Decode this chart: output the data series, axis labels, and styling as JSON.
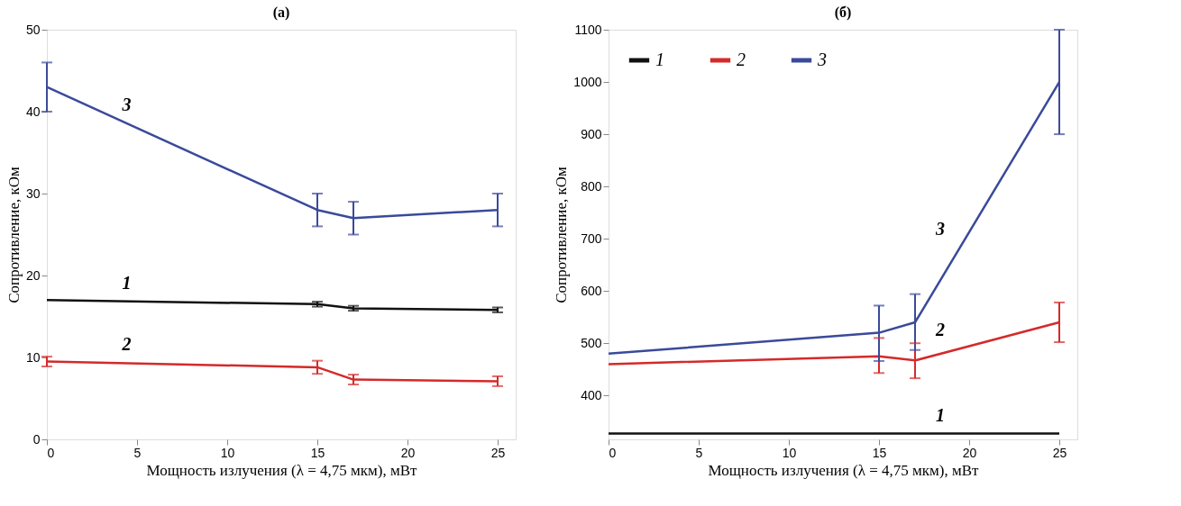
{
  "chart_data": [
    {
      "type": "line",
      "title": "(a)",
      "xlabel": "Мощность излучения (λ = 4,75 мкм), мВт",
      "ylabel": "Сопротивление, кОм",
      "x": [
        0,
        15,
        17,
        25
      ],
      "xlim": [
        0,
        26
      ],
      "xticks": [
        0,
        5,
        10,
        15,
        20,
        25
      ],
      "ylim": [
        0,
        50
      ],
      "yticks": [
        0,
        10,
        20,
        30,
        40,
        50
      ],
      "grid": false,
      "legend": false,
      "marker": "none",
      "line_style": "solid",
      "series": [
        {
          "name": "1",
          "color": "#111111",
          "values": [
            17,
            16.5,
            16,
            15.8
          ],
          "errors": [
            null,
            0.3,
            0.3,
            0.3
          ]
        },
        {
          "name": "2",
          "color": "#d42a2a",
          "values": [
            9.5,
            8.8,
            7.3,
            7.1
          ],
          "errors": [
            0.6,
            0.8,
            0.6,
            0.6
          ]
        },
        {
          "name": "3",
          "color": "#3a4a9a",
          "values": [
            43,
            28,
            27,
            28
          ],
          "errors": [
            3,
            2,
            2,
            2
          ]
        }
      ]
    },
    {
      "type": "line",
      "title": "(б)",
      "xlabel": "Мощность излучения (λ = 4,75 мкм), мВт",
      "ylabel": "Сопротивление, кОм",
      "x": [
        0,
        15,
        17,
        25
      ],
      "xlim": [
        0,
        26
      ],
      "xticks": [
        0,
        5,
        10,
        15,
        20,
        25
      ],
      "ylim": [
        316,
        1100
      ],
      "yticks": [
        400,
        500,
        600,
        700,
        800,
        900,
        1000,
        1100
      ],
      "grid": false,
      "legend": "top left",
      "marker": "none",
      "line_style": "solid",
      "series": [
        {
          "name": "1",
          "color": "#111111",
          "values": [
            327,
            327,
            327,
            327
          ]
        },
        {
          "name": "2",
          "color": "#d42a2a",
          "values": [
            460,
            475,
            467,
            540
          ],
          "errors": [
            null,
            [
              443,
              510
            ],
            [
              433,
              500
            ],
            [
              502,
              578
            ]
          ]
        },
        {
          "name": "3",
          "color": "#3a4a9a",
          "values": [
            480,
            520,
            540,
            1000
          ],
          "errors": [
            null,
            [
              466,
              572
            ],
            [
              487,
              594
            ],
            [
              900,
              1100
            ]
          ]
        }
      ]
    }
  ]
}
